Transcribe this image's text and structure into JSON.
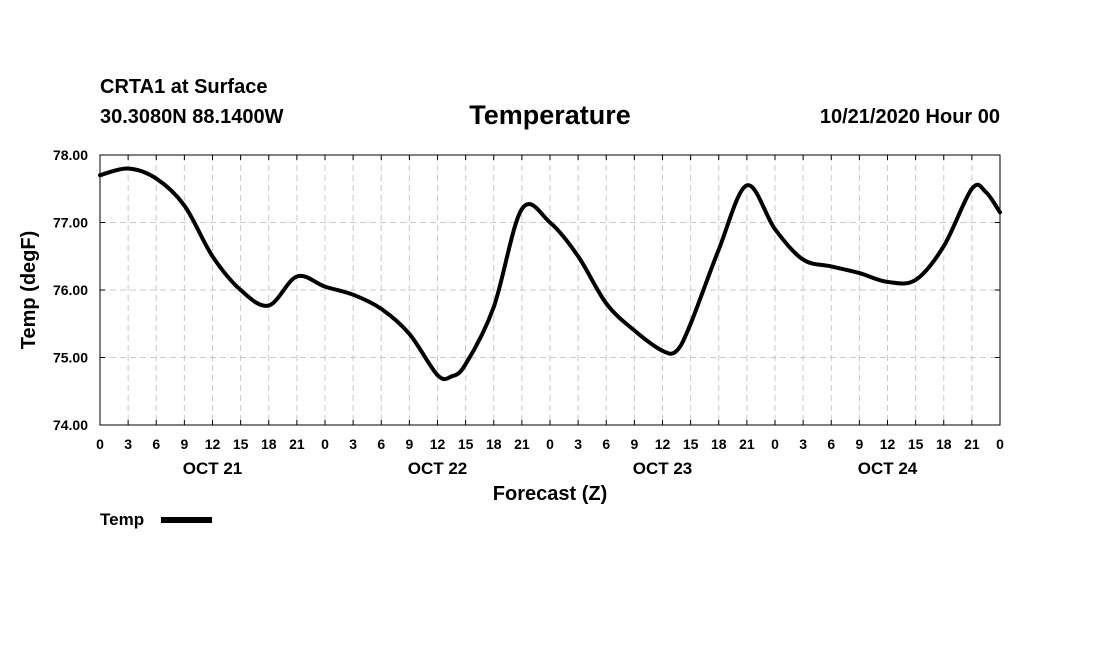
{
  "header": {
    "station": "CRTA1 at Surface",
    "coords": "30.3080N 88.1400W",
    "title": "Temperature",
    "valid": "10/21/2020 Hour 00"
  },
  "chart_data": {
    "type": "line",
    "title": "Temperature",
    "xlabel": "Forecast (Z)",
    "ylabel": "Temp (degF)",
    "ylim": [
      74,
      78
    ],
    "yticks": [
      "74.00",
      "75.00",
      "76.00",
      "77.00",
      "78.00"
    ],
    "xlim_hours": [
      0,
      96
    ],
    "xtick_labels": [
      "0",
      "3",
      "6",
      "9",
      "12",
      "15",
      "18",
      "21",
      "0",
      "3",
      "6",
      "9",
      "12",
      "15",
      "18",
      "21",
      "0",
      "3",
      "6",
      "9",
      "12",
      "15",
      "18",
      "21",
      "0",
      "3",
      "6",
      "9",
      "12",
      "15",
      "18",
      "21",
      "0"
    ],
    "day_labels": [
      {
        "label": "OCT 21",
        "hour": 12
      },
      {
        "label": "OCT 22",
        "hour": 36
      },
      {
        "label": "OCT 23",
        "hour": 60
      },
      {
        "label": "OCT 24",
        "hour": 84
      }
    ],
    "grid": true,
    "legend_position": "bottom-left",
    "series": [
      {
        "name": "Temp",
        "color": "#000000",
        "x": [
          0,
          3,
          6,
          9,
          12,
          15,
          18,
          21,
          24,
          27,
          30,
          33,
          36,
          37.5,
          39,
          42,
          45,
          48,
          51,
          54,
          57,
          60,
          61.5,
          63,
          66,
          69,
          72,
          75,
          78,
          81,
          84,
          87,
          90,
          93,
          94.5,
          96
        ],
        "values": [
          77.7,
          77.8,
          77.65,
          77.25,
          76.5,
          76.0,
          75.77,
          76.2,
          76.05,
          75.93,
          75.72,
          75.35,
          74.74,
          74.72,
          74.9,
          75.75,
          77.2,
          77.0,
          76.5,
          75.8,
          75.4,
          75.1,
          75.1,
          75.5,
          76.6,
          77.55,
          76.9,
          76.45,
          76.35,
          76.25,
          76.12,
          76.15,
          76.65,
          77.5,
          77.45,
          77.15
        ]
      }
    ]
  }
}
